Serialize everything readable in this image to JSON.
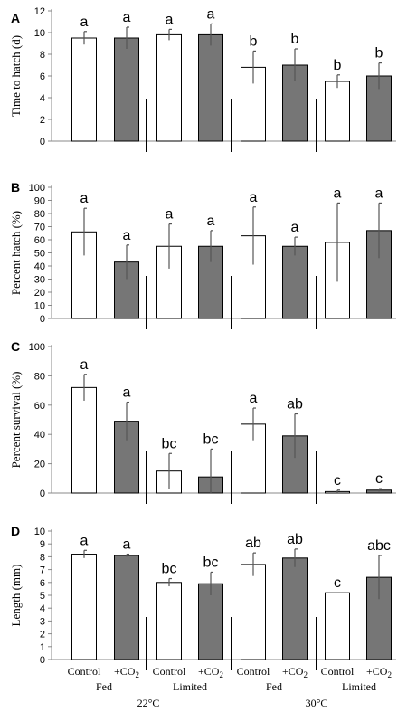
{
  "colors": {
    "control_fill": "#ffffff",
    "co2_fill": "#767676",
    "bar_stroke": "#000000",
    "error_bar": "#555555"
  },
  "x_axis": {
    "categories": [
      "Control",
      "+CO",
      "Control",
      "+CO",
      "Control",
      "+CO",
      "Control",
      "+CO"
    ],
    "subscripts": [
      "",
      "2",
      "",
      "2",
      "",
      "2",
      "",
      "2"
    ],
    "feeding": [
      "Fed",
      "Limited",
      "Fed",
      "Limited"
    ],
    "temperatures": [
      "22°C",
      "30°C"
    ]
  },
  "chart_data": [
    {
      "type": "bar",
      "panel": "A",
      "ylabel": "Time to hatch (d)",
      "ylim": [
        0,
        12
      ],
      "yticks": [
        0,
        2,
        4,
        6,
        8,
        10,
        12
      ],
      "values": [
        9.5,
        9.5,
        9.8,
        9.8,
        6.8,
        7.0,
        5.5,
        6.0
      ],
      "errors": [
        0.6,
        1.0,
        0.5,
        1.0,
        1.5,
        1.5,
        0.6,
        1.2
      ],
      "letters": [
        "a",
        "a",
        "a",
        "a",
        "b",
        "b",
        "b",
        "b"
      ]
    },
    {
      "type": "bar",
      "panel": "B",
      "ylabel": "Percent hatch (%)",
      "ylim": [
        0,
        100
      ],
      "yticks": [
        0,
        10,
        20,
        30,
        40,
        50,
        60,
        70,
        80,
        90,
        100
      ],
      "values": [
        66,
        43,
        55,
        55,
        63,
        55,
        58,
        67
      ],
      "errors": [
        18,
        13,
        17,
        12,
        22,
        7,
        30,
        21
      ],
      "letters": [
        "a",
        "a",
        "a",
        "a",
        "a",
        "a",
        "a",
        "a"
      ]
    },
    {
      "type": "bar",
      "panel": "C",
      "ylabel": "Percent survival (%)",
      "ylim": [
        0,
        100
      ],
      "yticks": [
        0,
        20,
        40,
        60,
        80,
        100
      ],
      "values": [
        72,
        49,
        15,
        11,
        47,
        39,
        1,
        2
      ],
      "errors": [
        9,
        13,
        12,
        19,
        11,
        15,
        1,
        1
      ],
      "letters": [
        "a",
        "a",
        "bc",
        "bc",
        "a",
        "ab",
        "c",
        "c"
      ]
    },
    {
      "type": "bar",
      "panel": "D",
      "ylabel": "Length (mm)",
      "ylim": [
        0,
        10
      ],
      "yticks": [
        0,
        1,
        2,
        3,
        4,
        5,
        6,
        7,
        8,
        9,
        10
      ],
      "values": [
        8.2,
        8.1,
        6.0,
        5.9,
        7.4,
        7.9,
        5.2,
        6.4
      ],
      "errors": [
        0.3,
        0.1,
        0.3,
        0.9,
        0.9,
        0.7,
        0.0,
        1.7
      ],
      "letters": [
        "a",
        "a",
        "bc",
        "bc",
        "ab",
        "ab",
        "c",
        "abc"
      ]
    }
  ]
}
